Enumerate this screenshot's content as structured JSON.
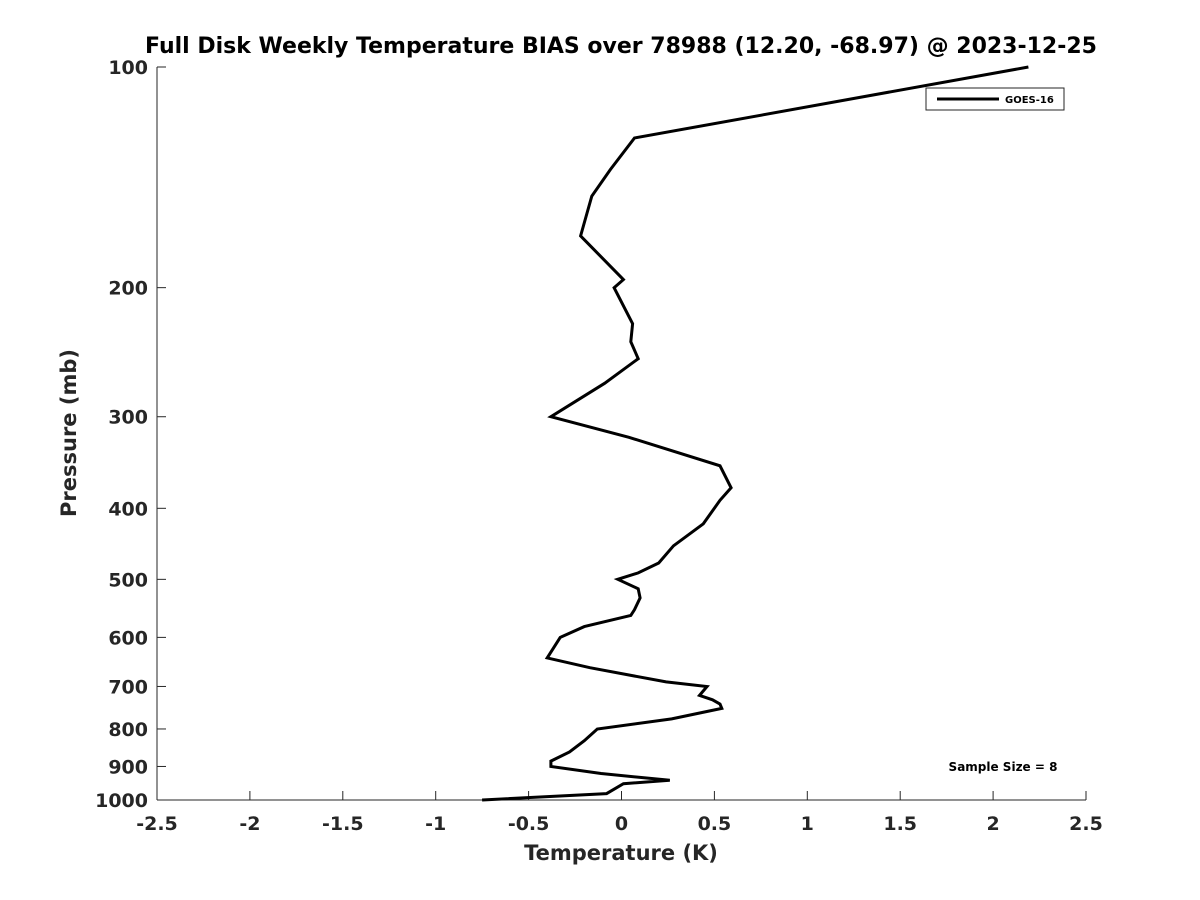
{
  "chart_data": {
    "type": "line",
    "title": "Full Disk Weekly Temperature BIAS over 78988 (12.20, -68.97) @ 2023-12-25",
    "xlabel": "Temperature (K)",
    "ylabel": "Pressure (mb)",
    "xlim": [
      -2.5,
      2.5
    ],
    "ylim": [
      1000,
      100
    ],
    "y_scale": "log",
    "y_reversed": true,
    "x_ticks": [
      "-2.5",
      "-2",
      "-1.5",
      "-1",
      "-0.5",
      "0",
      "0.5",
      "1",
      "1.5",
      "2",
      "2.5"
    ],
    "y_ticks": [
      "100",
      "200",
      "300",
      "400",
      "500",
      "600",
      "700",
      "800",
      "900",
      "1000"
    ],
    "grid": false,
    "legend_position": "top-right",
    "series": [
      {
        "name": "GOES-16",
        "color": "#000000",
        "x": [
          2.19,
          0.07,
          -0.06,
          -0.16,
          -0.22,
          0.01,
          -0.04,
          0.06,
          0.05,
          0.09,
          -0.09,
          -0.38,
          0.04,
          0.53,
          0.59,
          0.53,
          0.44,
          0.28,
          0.2,
          0.09,
          -0.02,
          0.09,
          0.1,
          0.07,
          0.05,
          -0.2,
          -0.33,
          -0.4,
          -0.17,
          0.24,
          0.46,
          0.42,
          0.49,
          0.53,
          0.54,
          0.27,
          -0.13,
          -0.2,
          -0.28,
          -0.38,
          -0.38,
          -0.11,
          0.26,
          0.01,
          -0.08,
          -0.75
        ],
        "y": [
          100,
          125,
          138,
          150,
          170,
          195,
          200,
          224,
          237,
          250,
          270,
          300,
          320,
          350,
          375,
          390,
          420,
          450,
          475,
          490,
          500,
          515,
          530,
          550,
          560,
          580,
          600,
          640,
          660,
          690,
          700,
          720,
          730,
          740,
          750,
          775,
          800,
          830,
          860,
          885,
          900,
          920,
          940,
          950,
          980,
          1000
        ]
      }
    ],
    "annotation": "Sample Size = 8"
  }
}
